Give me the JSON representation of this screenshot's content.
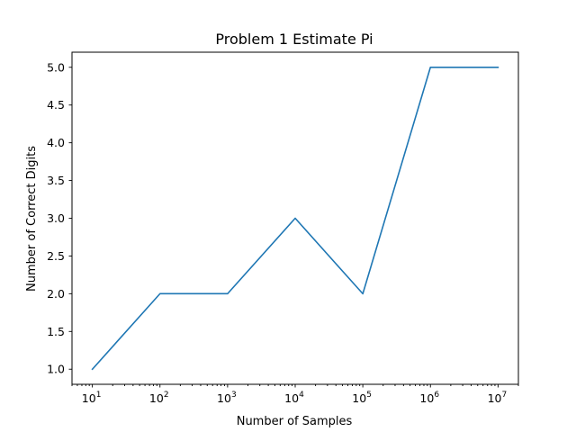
{
  "chart_data": {
    "type": "line",
    "title": "Problem 1 Estimate Pi",
    "xlabel": "Number of Samples",
    "ylabel": "Number of Correct Digits",
    "xscale": "log",
    "x": [
      10,
      100,
      1000,
      10000,
      100000,
      1000000,
      10000000
    ],
    "series": [
      {
        "values": [
          1.0,
          2.0,
          2.0,
          3.0,
          2.0,
          5.0,
          5.0
        ]
      }
    ],
    "xlim": [
      5,
      20000000
    ],
    "ylim": [
      0.8,
      5.2
    ],
    "x_major_ticks": [
      10,
      100,
      1000,
      10000,
      100000,
      1000000,
      10000000
    ],
    "x_tick_labels": [
      {
        "base": "10",
        "exp": "1"
      },
      {
        "base": "10",
        "exp": "2"
      },
      {
        "base": "10",
        "exp": "3"
      },
      {
        "base": "10",
        "exp": "4"
      },
      {
        "base": "10",
        "exp": "5"
      },
      {
        "base": "10",
        "exp": "6"
      },
      {
        "base": "10",
        "exp": "7"
      }
    ],
    "y_ticks": [
      1.0,
      1.5,
      2.0,
      2.5,
      3.0,
      3.5,
      4.0,
      4.5,
      5.0
    ],
    "y_tick_labels": [
      "1.0",
      "1.5",
      "2.0",
      "2.5",
      "3.0",
      "3.5",
      "4.0",
      "4.5",
      "5.0"
    ],
    "grid": false,
    "line_color": "#1f77b4"
  }
}
